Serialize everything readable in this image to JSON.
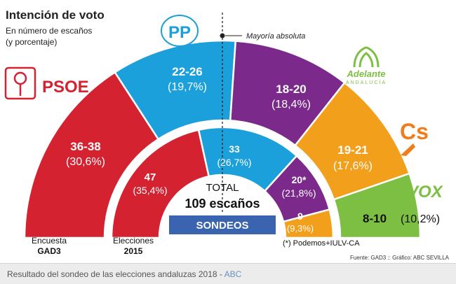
{
  "chart_data": {
    "type": "semicircle-parliament",
    "title": "Intención de voto",
    "subtitle_line1": "En número de escaños",
    "subtitle_line2": "(y porcentaje)",
    "majority_label": "Mayoría absoluta",
    "total_label": "TOTAL",
    "total_seats": "109 escaños",
    "sondeos_label": "SONDEOS",
    "footnote": "(*) Podemos+IULV-CA",
    "source": "Fuente: GAD3 :: Gráfico: ABC SEVILLA",
    "outer_ring_label_1": "Encuesta",
    "outer_ring_label_2": "GAD3",
    "inner_ring_label_1": "Elecciones",
    "inner_ring_label_2": "2015",
    "outer_ring": [
      {
        "party": "PSOE",
        "seats_label": "36-38",
        "pct_label": "(30,6%)",
        "pct": 30.6,
        "color": "#d42231"
      },
      {
        "party": "PP",
        "seats_label": "22-26",
        "pct_label": "(19,7%)",
        "pct": 19.7,
        "color": "#1ca0dc"
      },
      {
        "party": "Adelante Andalucía",
        "seats_label": "18-20",
        "pct_label": "(18,4%)",
        "pct": 18.4,
        "color": "#7b2a8b"
      },
      {
        "party": "Cs",
        "seats_label": "19-21",
        "pct_label": "(17,6%)",
        "pct": 17.6,
        "color": "#f29f1b"
      },
      {
        "party": "VOX",
        "seats_label": "8-10",
        "pct_label": "(10,2%)",
        "pct": 10.2,
        "color": "#7cbf42"
      }
    ],
    "inner_ring": [
      {
        "party": "PSOE",
        "seats_label": "47",
        "pct_label": "(35,4%)",
        "seats": 47,
        "color": "#d42231"
      },
      {
        "party": "PP",
        "seats_label": "33",
        "pct_label": "(26,7%)",
        "seats": 33,
        "color": "#1ca0dc"
      },
      {
        "party": "Podemos+IULV-CA",
        "seats_label": "20*",
        "pct_label": "(21,8%)",
        "seats": 20,
        "color": "#7b2a8b"
      },
      {
        "party": "Cs",
        "seats_label": "9",
        "pct_label": "(9,3%)",
        "seats": 9,
        "color": "#f29f1b"
      }
    ],
    "logos": {
      "psoe": "PSOE",
      "pp": "PP",
      "adelante": "Adelante",
      "adelante_sub": "ANDALUCÍA",
      "cs": "Cs",
      "vox": "VOX"
    }
  },
  "caption": {
    "text": "Resultado del sondeo de las elecciones andaluzas 2018 -",
    "link": "ABC"
  }
}
